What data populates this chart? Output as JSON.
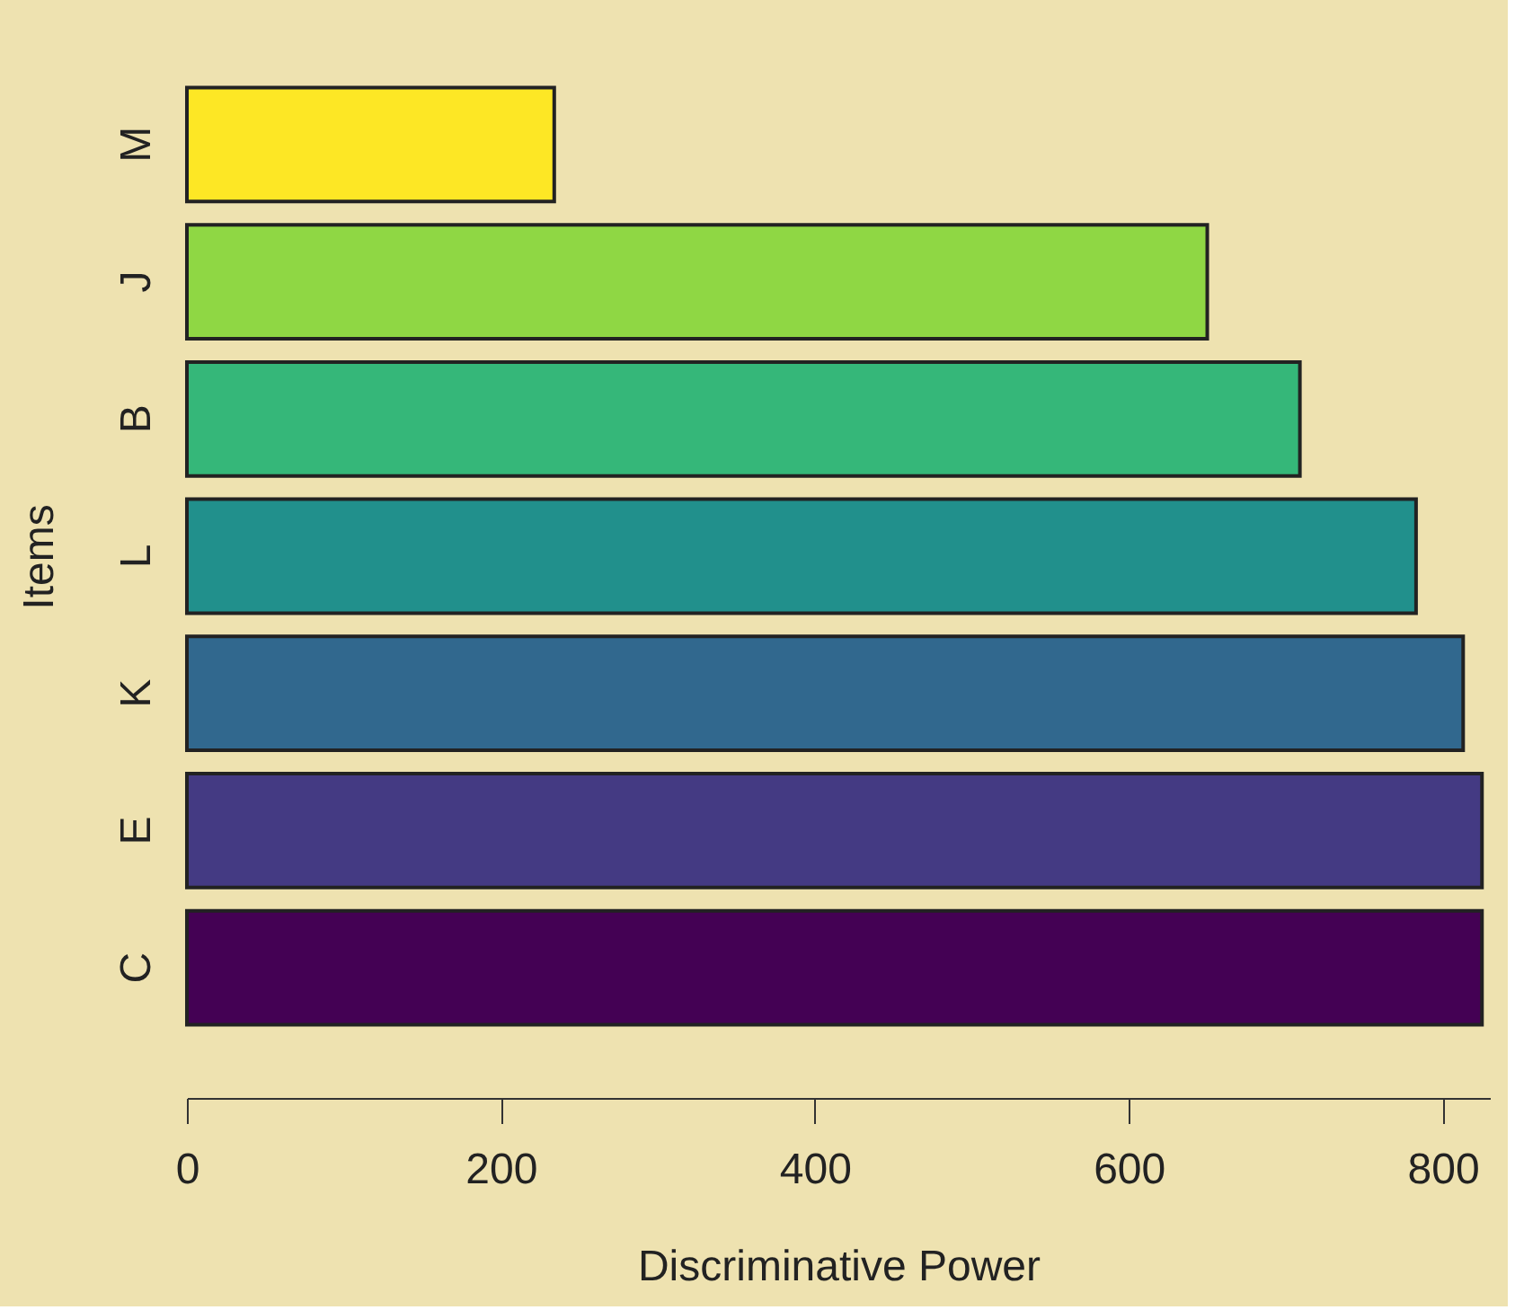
{
  "chart_data": {
    "type": "bar",
    "orientation": "horizontal",
    "xlabel": "Discriminative Power",
    "ylabel": "Items",
    "categories": [
      "M",
      "J",
      "B",
      "L",
      "K",
      "E",
      "C"
    ],
    "values": [
      234,
      650,
      709,
      783,
      813,
      825,
      825
    ],
    "colors": [
      "#fde725",
      "#8fd744",
      "#35b779",
      "#21908c",
      "#31688e",
      "#443a83",
      "#440154"
    ],
    "xlim": [
      0,
      830
    ],
    "xticks": [
      0,
      200,
      400,
      600,
      800
    ],
    "grid": false
  }
}
